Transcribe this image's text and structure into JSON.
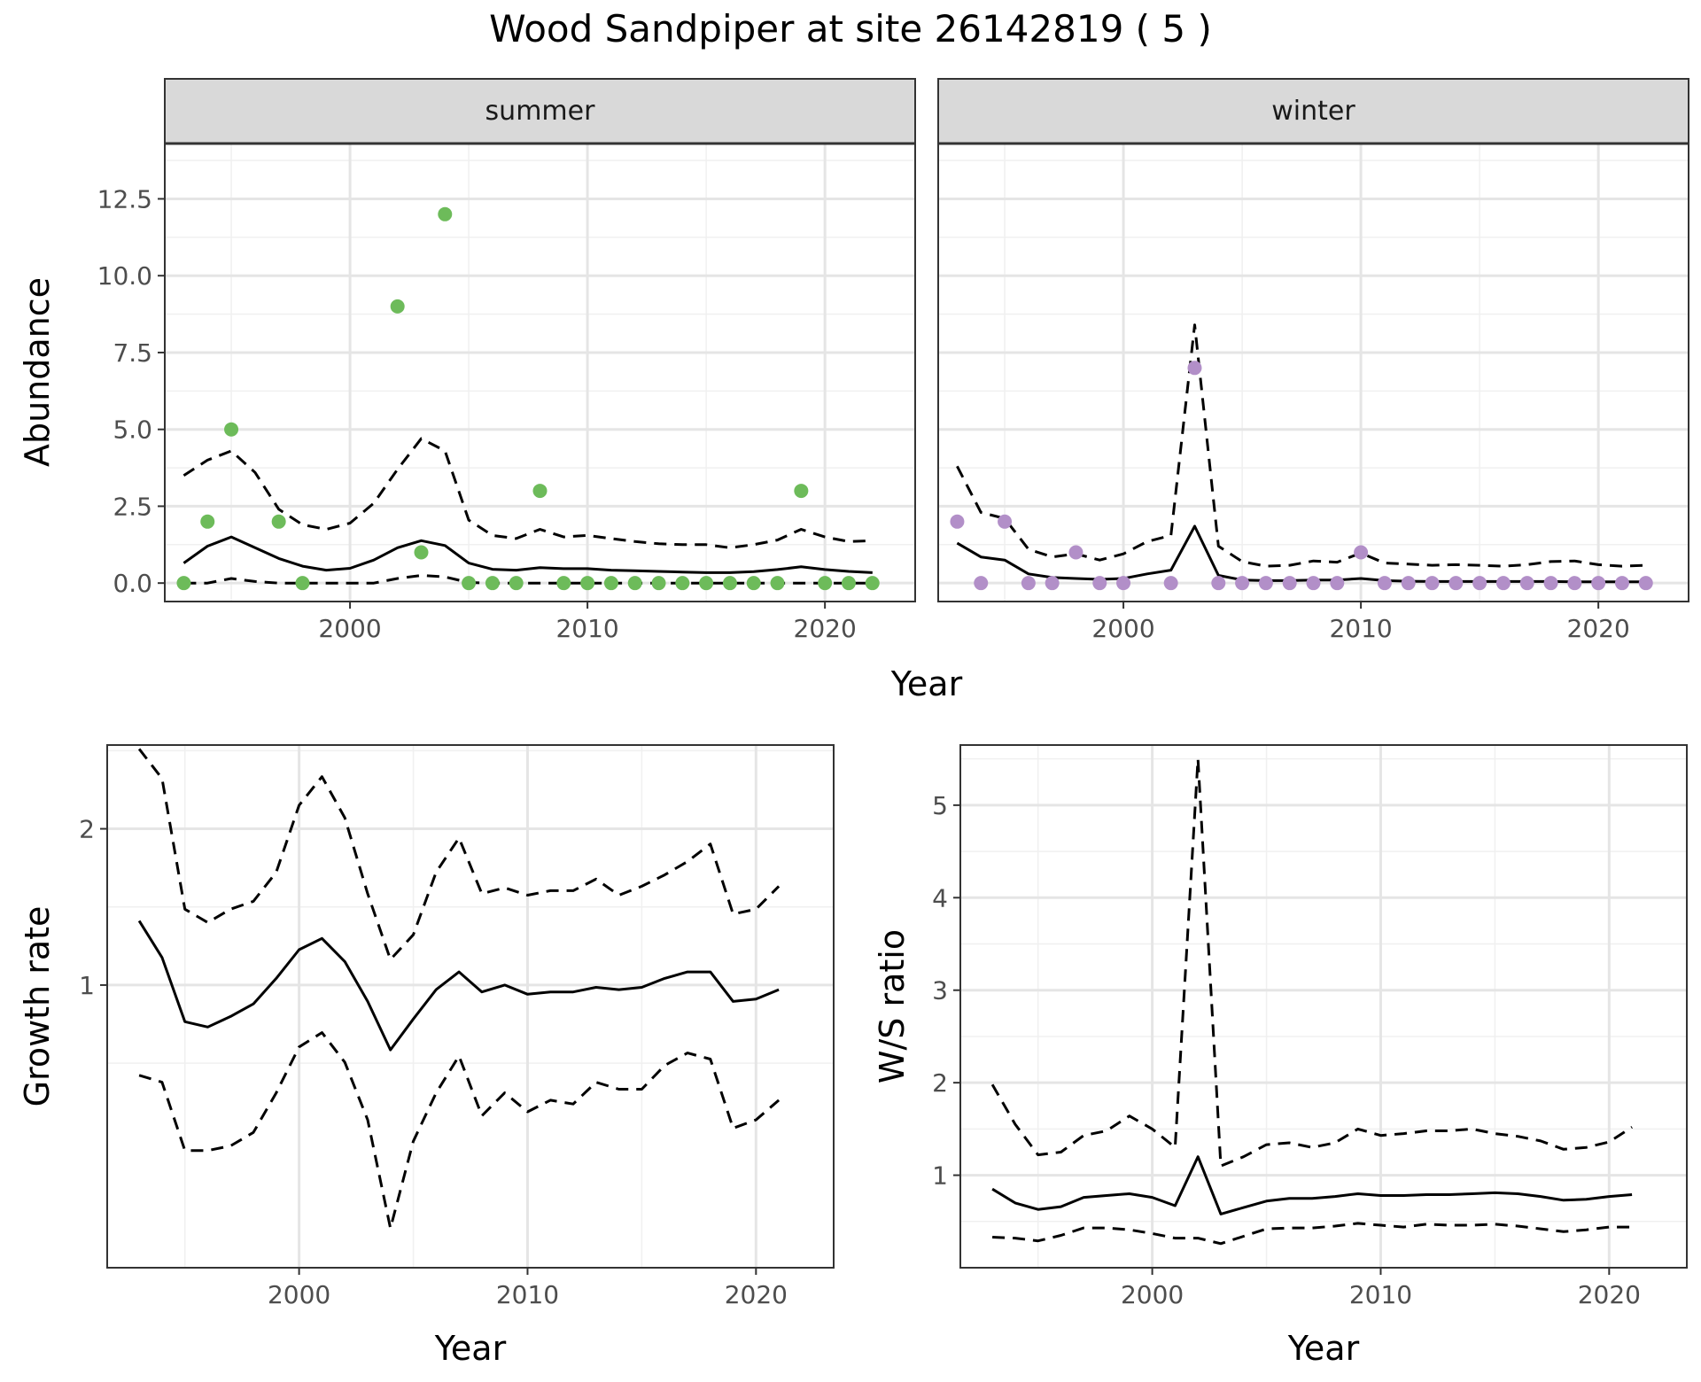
{
  "figure": {
    "title": "Wood Sandpiper at site 26142819 ( 5 )"
  },
  "chart_data": [
    {
      "type": "scatter",
      "panel": "abundance",
      "facets": [
        "summer",
        "winter"
      ],
      "xlabel": "Year",
      "ylabel": "Abundance",
      "xlim": [
        1992.2,
        2023.8
      ],
      "ylim": [
        -0.6,
        14.3
      ],
      "xticks": [
        2000,
        2010,
        2020
      ],
      "yticks": [
        0.0,
        2.5,
        5.0,
        7.5,
        10.0,
        12.5
      ],
      "ytick_labels": [
        "0.0",
        "2.5",
        "5.0",
        "7.5",
        "10.0",
        "12.5"
      ],
      "grid": true,
      "colors": {
        "summer": "#6dbb5a",
        "winter": "#b28fc8",
        "line": "#000000",
        "strip_fill": "#d9d9d9"
      },
      "summer": {
        "observed": {
          "x": [
            1993,
            1994,
            1995,
            1997,
            1998,
            2002,
            2003,
            2004,
            2005,
            2006,
            2007,
            2008,
            2009,
            2010,
            2011,
            2012,
            2013,
            2014,
            2015,
            2016,
            2017,
            2018,
            2019,
            2020,
            2021,
            2022
          ],
          "y": [
            0,
            2,
            5,
            2,
            0,
            9,
            1,
            12,
            0,
            0,
            0,
            3,
            0,
            0,
            0,
            0,
            0,
            0,
            0,
            0,
            0,
            0,
            3,
            0,
            0,
            0
          ]
        },
        "fit_x": [
          1993,
          1994,
          1995,
          1996,
          1997,
          1998,
          1999,
          2000,
          2001,
          2002,
          2003,
          2004,
          2005,
          2006,
          2007,
          2008,
          2009,
          2010,
          2011,
          2012,
          2013,
          2014,
          2015,
          2016,
          2017,
          2018,
          2019,
          2020,
          2021,
          2022
        ],
        "mean": [
          0.65,
          1.2,
          1.5,
          1.15,
          0.8,
          0.55,
          0.42,
          0.48,
          0.75,
          1.15,
          1.38,
          1.22,
          0.65,
          0.45,
          0.42,
          0.5,
          0.47,
          0.47,
          0.42,
          0.4,
          0.38,
          0.36,
          0.34,
          0.34,
          0.37,
          0.44,
          0.53,
          0.44,
          0.38,
          0.34
        ],
        "upper": [
          3.5,
          4.0,
          4.3,
          3.6,
          2.4,
          1.9,
          1.75,
          1.95,
          2.6,
          3.7,
          4.7,
          4.3,
          2.05,
          1.55,
          1.45,
          1.75,
          1.5,
          1.55,
          1.45,
          1.35,
          1.28,
          1.25,
          1.25,
          1.15,
          1.25,
          1.4,
          1.75,
          1.5,
          1.35,
          1.38
        ],
        "lower": [
          0.0,
          0.0,
          0.15,
          0.05,
          0.0,
          0.0,
          0.0,
          0.0,
          0.0,
          0.15,
          0.25,
          0.2,
          0.02,
          0.0,
          0.0,
          0.0,
          0.0,
          0.0,
          0.0,
          0.0,
          0.0,
          0.0,
          0.0,
          0.0,
          0.0,
          0.0,
          0.0,
          0.0,
          0.0,
          0.0
        ]
      },
      "winter": {
        "observed": {
          "x": [
            1993,
            1994,
            1995,
            1996,
            1997,
            1998,
            1999,
            2000,
            2002,
            2003,
            2004,
            2005,
            2006,
            2007,
            2008,
            2009,
            2010,
            2011,
            2012,
            2013,
            2014,
            2015,
            2016,
            2017,
            2018,
            2019,
            2020,
            2021,
            2022
          ],
          "y": [
            2,
            0,
            2,
            0,
            0,
            1,
            0,
            0,
            0,
            7,
            0,
            0,
            0,
            0,
            0,
            0,
            1,
            0,
            0,
            0,
            0,
            0,
            0,
            0,
            0,
            0,
            0,
            0,
            0
          ]
        },
        "fit_x": [
          1993,
          1994,
          1995,
          1996,
          1997,
          1998,
          1999,
          2000,
          2001,
          2002,
          2003,
          2004,
          2005,
          2006,
          2007,
          2008,
          2009,
          2010,
          2011,
          2012,
          2013,
          2014,
          2015,
          2016,
          2017,
          2018,
          2019,
          2020,
          2021,
          2022
        ],
        "mean": [
          1.3,
          0.85,
          0.75,
          0.3,
          0.18,
          0.15,
          0.12,
          0.15,
          0.3,
          0.42,
          1.85,
          0.25,
          0.1,
          0.08,
          0.08,
          0.1,
          0.1,
          0.15,
          0.08,
          0.06,
          0.05,
          0.05,
          0.05,
          0.05,
          0.05,
          0.05,
          0.04,
          0.04,
          0.04,
          0.04
        ],
        "upper": [
          3.8,
          2.3,
          2.1,
          1.1,
          0.85,
          0.95,
          0.75,
          0.95,
          1.35,
          1.55,
          8.4,
          1.2,
          0.7,
          0.55,
          0.58,
          0.72,
          0.68,
          0.98,
          0.65,
          0.62,
          0.58,
          0.6,
          0.58,
          0.55,
          0.6,
          0.7,
          0.72,
          0.6,
          0.55,
          0.58
        ]
      }
    },
    {
      "type": "line",
      "panel": "growth",
      "xlabel": "Year",
      "ylabel": "Growth rate",
      "xlim": [
        1991.6,
        2023.4
      ],
      "ylim": [
        0.2854,
        2.9
      ],
      "log_scale_y": true,
      "xticks": [
        2000,
        2010,
        2020
      ],
      "yticks": [
        1,
        2
      ],
      "grid": true,
      "x": [
        1993,
        1994,
        1995,
        1996,
        1997,
        1998,
        1999,
        2000,
        2001,
        2002,
        2003,
        2004,
        2005,
        2006,
        2007,
        2008,
        2009,
        2010,
        2011,
        2012,
        2013,
        2014,
        2015,
        2016,
        2017,
        2018,
        2019,
        2020,
        2021
      ],
      "mean": [
        1.33,
        1.13,
        0.85,
        0.83,
        0.87,
        0.92,
        1.03,
        1.17,
        1.23,
        1.11,
        0.93,
        0.75,
        0.86,
        0.98,
        1.06,
        0.97,
        1.0,
        0.96,
        0.97,
        0.97,
        0.99,
        0.98,
        0.99,
        1.03,
        1.06,
        1.06,
        0.93,
        0.94,
        0.98
      ],
      "upper": [
        2.85,
        2.5,
        1.4,
        1.32,
        1.4,
        1.45,
        1.65,
        2.22,
        2.52,
        2.1,
        1.5,
        1.12,
        1.25,
        1.65,
        1.92,
        1.5,
        1.54,
        1.49,
        1.52,
        1.52,
        1.6,
        1.49,
        1.55,
        1.63,
        1.73,
        1.87,
        1.37,
        1.4,
        1.55
      ],
      "lower": [
        0.67,
        0.65,
        0.48,
        0.48,
        0.49,
        0.52,
        0.62,
        0.76,
        0.81,
        0.71,
        0.55,
        0.34,
        0.5,
        0.62,
        0.73,
        0.56,
        0.62,
        0.57,
        0.6,
        0.59,
        0.65,
        0.63,
        0.63,
        0.7,
        0.74,
        0.72,
        0.53,
        0.55,
        0.6
      ]
    },
    {
      "type": "line",
      "panel": "ratio",
      "xlabel": "Year",
      "ylabel": "W/S ratio",
      "xlim": [
        1991.6,
        2023.4
      ],
      "ylim": [
        -0.0,
        5.65
      ],
      "xticks": [
        2000,
        2010,
        2020
      ],
      "yticks": [
        1,
        2,
        3,
        4,
        5
      ],
      "grid": true,
      "x": [
        1993,
        1994,
        1995,
        1996,
        1997,
        1998,
        1999,
        2000,
        2001,
        2002,
        2003,
        2004,
        2005,
        2006,
        2007,
        2008,
        2009,
        2010,
        2011,
        2012,
        2013,
        2014,
        2015,
        2016,
        2017,
        2018,
        2019,
        2020,
        2021
      ],
      "mean": [
        0.85,
        0.7,
        0.63,
        0.66,
        0.76,
        0.78,
        0.8,
        0.76,
        0.67,
        1.2,
        0.58,
        0.65,
        0.72,
        0.75,
        0.75,
        0.77,
        0.8,
        0.78,
        0.78,
        0.79,
        0.79,
        0.8,
        0.81,
        0.8,
        0.77,
        0.73,
        0.74,
        0.77,
        0.79
      ],
      "upper": [
        1.98,
        1.55,
        1.22,
        1.25,
        1.43,
        1.48,
        1.64,
        1.5,
        1.3,
        5.5,
        1.1,
        1.2,
        1.33,
        1.35,
        1.3,
        1.35,
        1.5,
        1.43,
        1.45,
        1.48,
        1.48,
        1.5,
        1.45,
        1.42,
        1.37,
        1.28,
        1.3,
        1.36,
        1.52
      ],
      "lower": [
        0.33,
        0.32,
        0.29,
        0.35,
        0.43,
        0.43,
        0.41,
        0.37,
        0.32,
        0.32,
        0.26,
        0.34,
        0.42,
        0.43,
        0.43,
        0.45,
        0.48,
        0.46,
        0.44,
        0.47,
        0.46,
        0.46,
        0.47,
        0.45,
        0.42,
        0.39,
        0.41,
        0.44,
        0.44
      ]
    }
  ]
}
